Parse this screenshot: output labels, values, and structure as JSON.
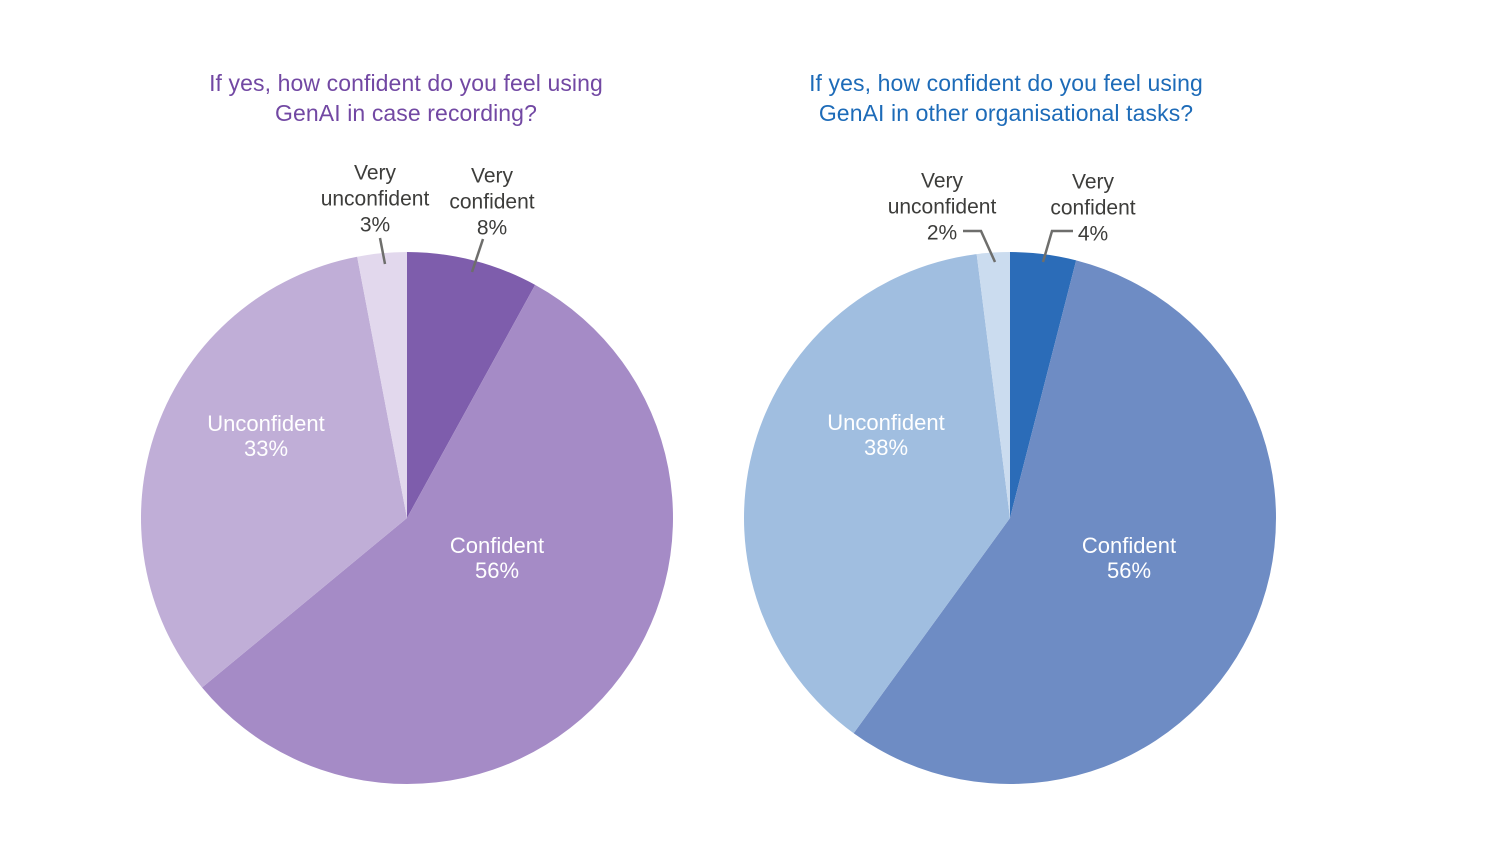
{
  "page": {
    "background_color": "#FFFFFF"
  },
  "chart_data": [
    {
      "type": "pie",
      "title": "If yes, how confident do you feel using GenAI in case recording?",
      "title_lines": [
        "If yes, how confident do you feel using",
        "GenAI in case recording?"
      ],
      "title_color": "#7248A3",
      "direction": "clockwise",
      "start_angle_deg": 0,
      "categories": [
        "Very confident",
        "Confident",
        "Unconfident",
        "Very unconfident"
      ],
      "values": [
        8,
        56,
        33,
        3
      ],
      "value_labels": [
        "8%",
        "56%",
        "33%",
        "3%"
      ],
      "colors": [
        "#7E5DAC",
        "#A58BC6",
        "#C0AED7",
        "#E2D8ED"
      ],
      "label_placement": [
        "outside",
        "inside",
        "inside",
        "outside"
      ],
      "outside_label_color": "#3D3D3B",
      "inside_label_color": "#FFFFFF",
      "leader_line_color": "#6E6E6C",
      "legend": "none"
    },
    {
      "type": "pie",
      "title": "If yes, how confident do you feel using GenAI in other organisational tasks?",
      "title_lines": [
        "If yes, how confident do you feel using",
        "GenAI in other organisational tasks?"
      ],
      "title_color": "#1D6BB8",
      "direction": "clockwise",
      "start_angle_deg": 0,
      "categories": [
        "Very confident",
        "Confident",
        "Unconfident",
        "Very unconfident"
      ],
      "values": [
        4,
        56,
        38,
        2
      ],
      "value_labels": [
        "4%",
        "56%",
        "38%",
        "2%"
      ],
      "colors": [
        "#2B6CB8",
        "#6E8CC4",
        "#A0BEE0",
        "#CBDCEF"
      ],
      "label_placement": [
        "outside",
        "inside",
        "inside",
        "outside"
      ],
      "outside_label_color": "#3D3D3B",
      "inside_label_color": "#FFFFFF",
      "leader_line_color": "#6E6E6C",
      "legend": "none"
    }
  ]
}
